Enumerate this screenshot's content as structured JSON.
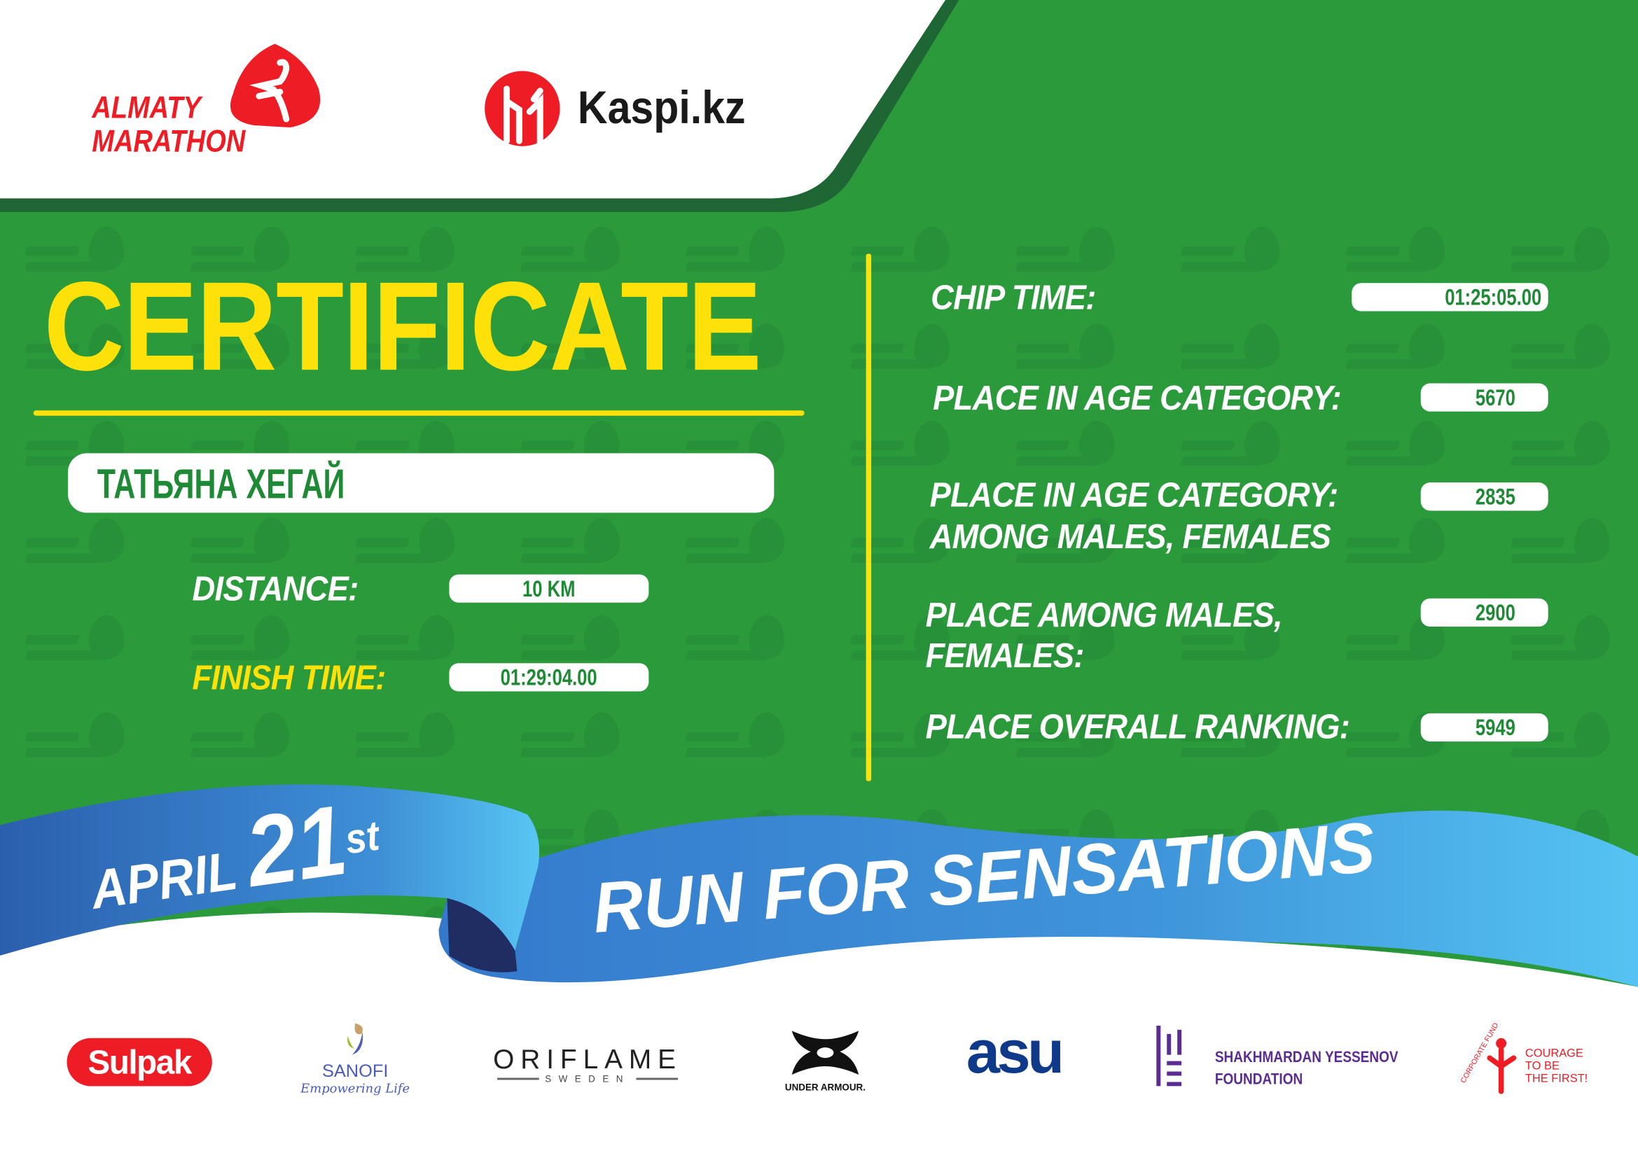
{
  "watermark": {
    "line1": "ALMATY",
    "line2": "MARATHON"
  },
  "header": {
    "organizer_logo": {
      "line1": "ALMATY",
      "line2": "MARATHON",
      "color": "#ee1c25"
    },
    "sponsor_logo": {
      "text": "Kaspi.kz",
      "color": "#ee1c25"
    }
  },
  "certificate": {
    "title": "CERTIFICATE",
    "participant_name": "ТАТЬЯНА ХЕГАЙ",
    "distance_label": "DISTANCE:",
    "distance_value": "10 KM",
    "finish_time_label": "FINISH TIME:",
    "finish_time_value": "01:29:04.00"
  },
  "results": {
    "chip_time_label": "CHIP TIME:",
    "chip_time_value": "01:25:05.00",
    "age_place_label": "PLACE IN AGE CATEGORY:",
    "age_place_value": "5670",
    "age_gender_place_label_1": "PLACE IN AGE CATEGORY:",
    "age_gender_place_label_2": "AMONG MALES, FEMALES",
    "age_gender_place_value": "2835",
    "gender_place_label_1": "PLACE AMONG MALES,",
    "gender_place_label_2": "FEMALES:",
    "gender_place_value": "2900",
    "overall_label": "PLACE OVERALL RANKING:",
    "overall_value": "5949"
  },
  "ribbon": {
    "month": "APRIL",
    "day": "21",
    "suffix": "st",
    "slogan": "RUN FOR SENSATIONS"
  },
  "sponsors": {
    "sulpak": "Sulpak",
    "sanofi": "SANOFI",
    "sanofi_tagline": "Empowering Life",
    "oriflame": "ORIFLAME",
    "oriflame_sub": "SWEDEN",
    "under_armour": "UNDER ARMOUR.",
    "asu": "asu",
    "yessenov_1": "SHAKHMARDAN YESSENOV",
    "yessenov_2": "FOUNDATION",
    "courage_arc": "CORPORATE FUND",
    "courage_1": "COURAGE",
    "courage_2": "TO BE",
    "courage_3": "THE FIRST!"
  },
  "colors": {
    "green": "#2a9a3b",
    "dark_green": "#1e6633",
    "yellow": "#ffe10a",
    "blue": "#3a82d0",
    "light_blue": "#55c3f2",
    "red": "#ee1c25"
  }
}
